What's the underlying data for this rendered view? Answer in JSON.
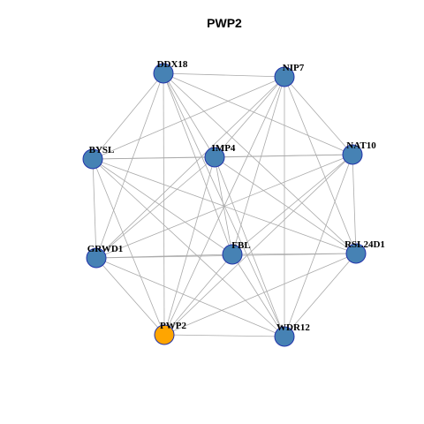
{
  "title": "PWP2",
  "nodes": [
    {
      "label": "DDX18",
      "color": "#4682b4"
    },
    {
      "label": "NIP7",
      "color": "#4682b4"
    },
    {
      "label": "BYSL",
      "color": "#4682b4"
    },
    {
      "label": "IMP4",
      "color": "#4682b4"
    },
    {
      "label": "NAT10",
      "color": "#4682b4"
    },
    {
      "label": "GRWD1",
      "color": "#4682b4"
    },
    {
      "label": "FBL",
      "color": "#4682b4"
    },
    {
      "label": "RSL24D1",
      "color": "#4682b4"
    },
    {
      "label": "PWP2",
      "color": "#ffa500"
    },
    {
      "label": "WDR12",
      "color": "#4682b4"
    }
  ]
}
